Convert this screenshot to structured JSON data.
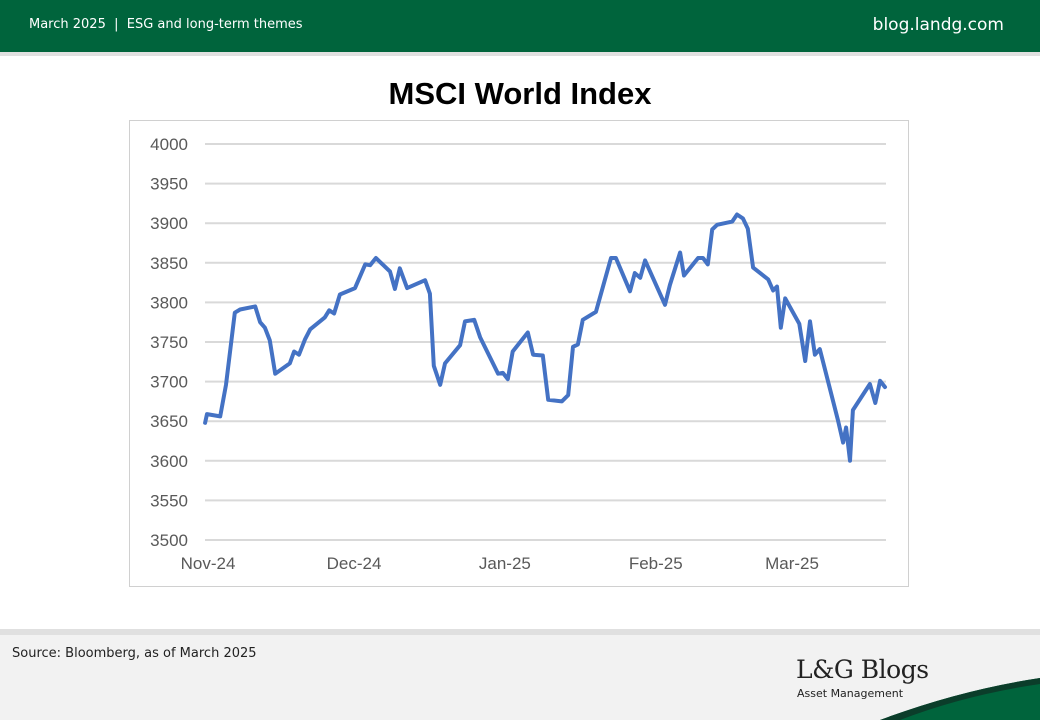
{
  "header": {
    "left_text": "March 2025  |  ESG and long-term themes",
    "right_text": "blog.landg.com"
  },
  "footer": {
    "source": "Source: Bloomberg, as of March 2025",
    "logo_title": "L&G Blogs",
    "logo_subtitle": "Asset Management"
  },
  "colors": {
    "brand_green": "#00643c",
    "line": "#4472c4",
    "grid": "#d9d9d9"
  },
  "chart_data": {
    "type": "line",
    "title": "MSCI World Index",
    "xlabel": "",
    "ylabel": "",
    "ylim": [
      3500,
      4000
    ],
    "yticks": [
      "4000",
      "3950",
      "3900",
      "3850",
      "3800",
      "3750",
      "3700",
      "3650",
      "3600",
      "3550",
      "3500"
    ],
    "x_unit": "days since 1 Nov 2024",
    "xlim": [
      -0.6,
      139.1
    ],
    "xticks": [
      {
        "label": "Nov-24",
        "day": 0
      },
      {
        "label": "Dec-24",
        "day": 30
      },
      {
        "label": "Jan-25",
        "day": 61
      },
      {
        "label": "Feb-25",
        "day": 92
      },
      {
        "label": "Mar-25",
        "day": 120
      }
    ],
    "grid": true,
    "series": [
      {
        "name": "MSCI World Index",
        "x": [
          -0.6,
          -0.2,
          2.5,
          3.7,
          5.5,
          6.6,
          9.7,
          10.7,
          11.7,
          12.7,
          13.8,
          16.8,
          17.7,
          18.7,
          19.9,
          21.0,
          24.0,
          24.9,
          25.9,
          27.1,
          30.2,
          32.3,
          33.3,
          34.5,
          37.4,
          38.4,
          39.4,
          40.9,
          44.6,
          45.6,
          46.4,
          47.7,
          48.7,
          51.8,
          52.8,
          54.7,
          55.9,
          59.6,
          60.6,
          61.6,
          62.6,
          65.7,
          66.8,
          68.8,
          69.9,
          72.7,
          74.0,
          75.0,
          76.0,
          77.0,
          79.7,
          81.2,
          82.8,
          83.8,
          86.7,
          87.7,
          88.8,
          89.8,
          93.9,
          94.9,
          97.0,
          97.8,
          100.7,
          101.7,
          102.7,
          103.6,
          104.6,
          107.7,
          108.7,
          109.9,
          110.9,
          112.0,
          115.1,
          116.1,
          116.9,
          117.7,
          118.6,
          121.5,
          122.7,
          123.7,
          124.7,
          125.7,
          129.4,
          130.5,
          131.1,
          131.9,
          132.5,
          136.0,
          137.1,
          138.1,
          139.1
        ],
        "values": [
          3648,
          3659,
          3656,
          3696,
          3787,
          3791,
          3795,
          3775,
          3768,
          3752,
          3710,
          3723,
          3738,
          3734,
          3753,
          3766,
          3781,
          3790,
          3786,
          3810,
          3818,
          3848,
          3847,
          3856,
          3839,
          3817,
          3843,
          3818,
          3828,
          3811,
          3720,
          3696,
          3723,
          3746,
          3776,
          3778,
          3756,
          3710,
          3711,
          3703,
          3738,
          3762,
          3734,
          3733,
          3677,
          3675,
          3683,
          3744,
          3747,
          3778,
          3788,
          3821,
          3856,
          3856,
          3814,
          3837,
          3831,
          3853,
          3797,
          3822,
          3863,
          3834,
          3856,
          3856,
          3848,
          3892,
          3898,
          3902,
          3911,
          3906,
          3893,
          3844,
          3829,
          3815,
          3820,
          3768,
          3805,
          3773,
          3726,
          3776,
          3734,
          3741,
          3652,
          3623,
          3642,
          3600,
          3664,
          3697,
          3673,
          3701,
          3693
        ]
      }
    ]
  }
}
